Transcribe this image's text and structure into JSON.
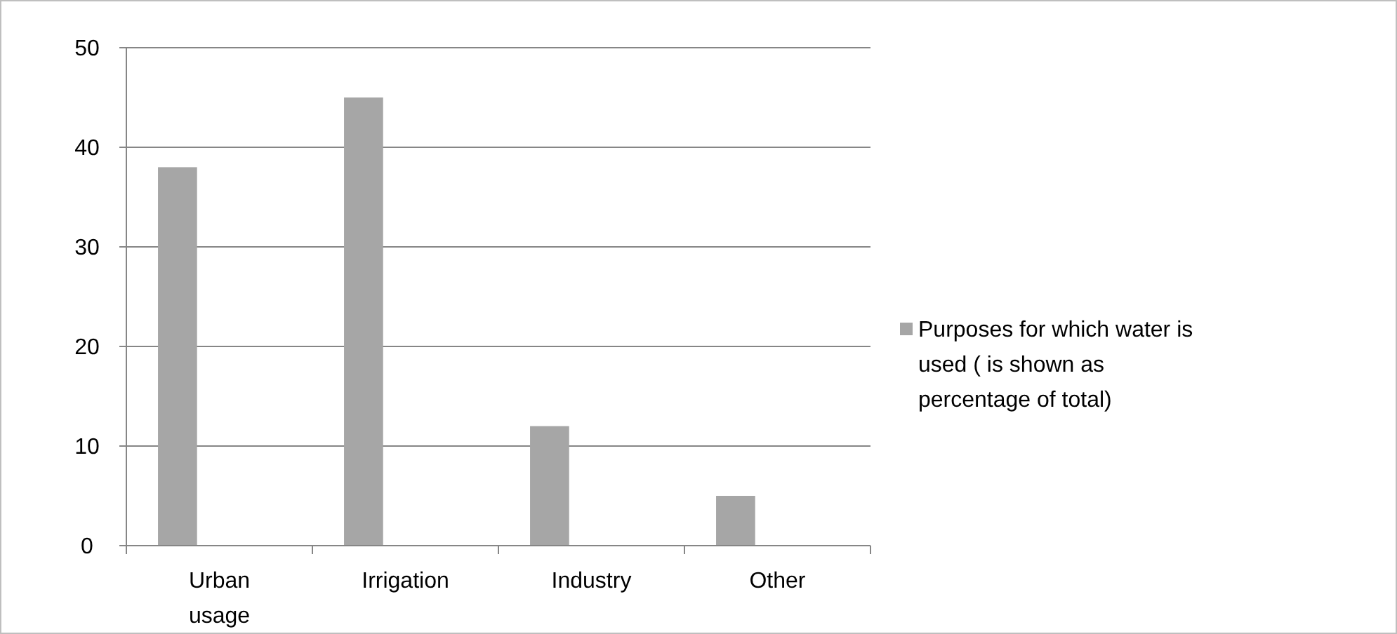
{
  "chart_data": {
    "type": "bar",
    "categories": [
      "Urban usage",
      "Irrigation",
      "Industry",
      "Other"
    ],
    "series": [
      {
        "name": "Purposes for which water is used ( is shown as percentage of total)",
        "color": "#a6a6a6",
        "values": [
          38,
          45,
          12,
          5
        ]
      }
    ],
    "ylim": [
      0,
      50
    ],
    "yticks": [
      0,
      10,
      20,
      30,
      40,
      50
    ],
    "grid": "y",
    "legend": "right"
  }
}
